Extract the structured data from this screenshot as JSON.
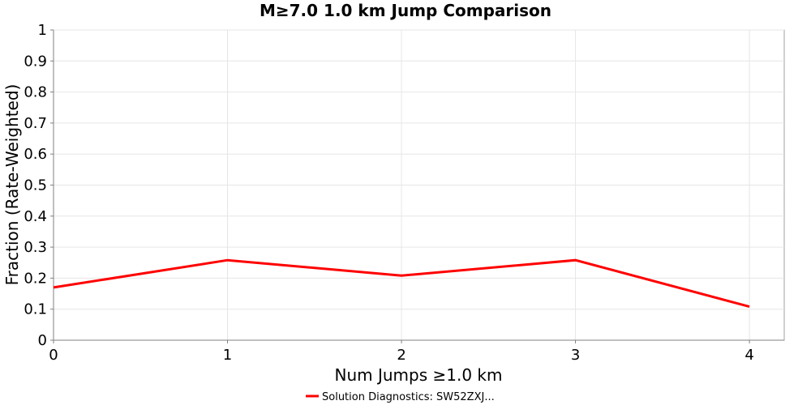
{
  "chart_data": {
    "type": "line",
    "title": "M≥7.0 1.0 km Jump Comparison",
    "xlabel": "Num Jumps ≥1.0 km",
    "ylabel": "Fraction (Rate-Weighted)",
    "xlim": [
      0,
      4.2
    ],
    "ylim": [
      0,
      1
    ],
    "x_ticks": [
      0,
      1,
      2,
      3,
      4
    ],
    "y_ticks": [
      0,
      0.1,
      0.2,
      0.3,
      0.4,
      0.5,
      0.6,
      0.7,
      0.8,
      0.9,
      1
    ],
    "y_tick_labels": [
      "0",
      "0.1",
      "0.2",
      "0.3",
      "0.4",
      "0.5",
      "0.6",
      "0.7",
      "0.8",
      "0.9",
      "1"
    ],
    "grid": true,
    "legend_position": "bottom-center",
    "series": [
      {
        "name": "Solution Diagnostics: SW52ZXJ...",
        "color": "#ff0000",
        "x": [
          0,
          1,
          2,
          3,
          4
        ],
        "y": [
          0.17,
          0.258,
          0.208,
          0.258,
          0.108
        ]
      }
    ]
  }
}
